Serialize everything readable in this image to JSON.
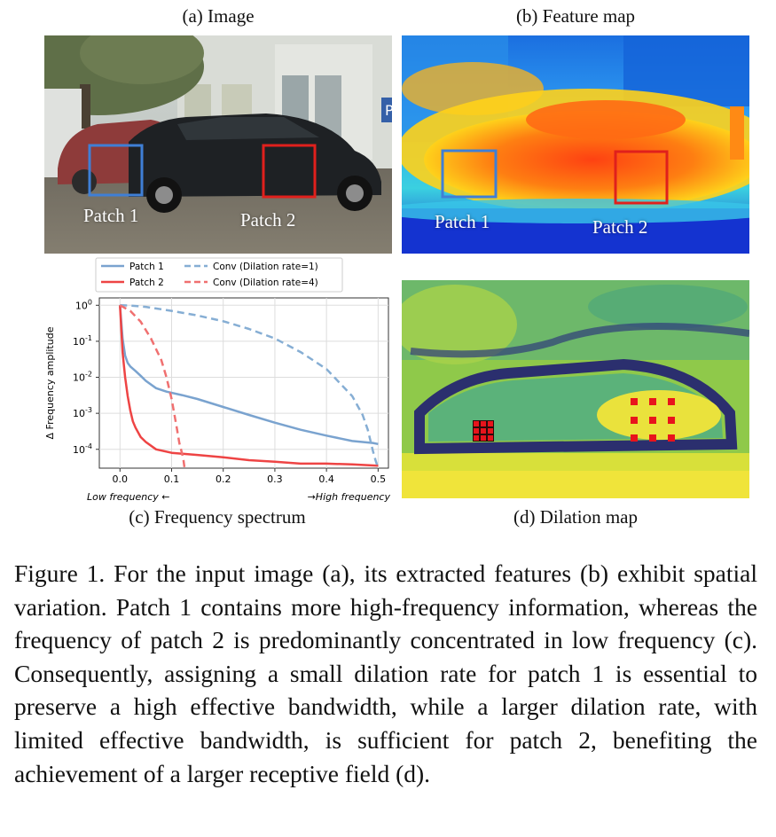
{
  "panels": {
    "a": {
      "title": "(a) Image",
      "patch1_label": "Patch 1",
      "patch2_label": "Patch 2"
    },
    "b": {
      "title": "(b) Feature map",
      "patch1_label": "Patch 1",
      "patch2_label": "Patch 2"
    },
    "c": {
      "title": "(c) Frequency spectrum"
    },
    "d": {
      "title": "(d) Dilation map"
    }
  },
  "colors": {
    "patch1": "#3f7fd6",
    "patch2": "#e0201c",
    "series_patch1": "#7aa3cf",
    "series_patch2": "#ee4444",
    "conv_d1": "#86aed4",
    "conv_d4": "#f07070",
    "dilation_marker": "#e8141c"
  },
  "chart_data": {
    "type": "line",
    "title": "",
    "xlabel": "",
    "ylabel": "Δ Frequency amplitude",
    "x_low_label": "Low frequency ←",
    "x_high_label": "→High frequency",
    "xlim": [
      -0.04,
      0.52
    ],
    "ylim": [
      3e-05,
      1.6
    ],
    "yscale": "log",
    "grid": true,
    "legend_position": "top",
    "x_ticks": [
      0.0,
      0.1,
      0.2,
      0.3,
      0.4,
      0.5
    ],
    "x_tick_labels": [
      "0.0",
      "0.1",
      "0.2",
      "0.3",
      "0.4",
      "0.5"
    ],
    "y_ticks": [
      1,
      0.1,
      0.01,
      0.001,
      0.0001
    ],
    "y_tick_base": "10",
    "y_tick_exponents": [
      "0",
      "-1",
      "-2",
      "-3",
      "-4"
    ],
    "series": [
      {
        "name": "Patch 1",
        "style": "solid",
        "x": [
          0.0,
          0.005,
          0.01,
          0.015,
          0.02,
          0.03,
          0.04,
          0.05,
          0.07,
          0.09,
          0.12,
          0.15,
          0.2,
          0.25,
          0.3,
          0.35,
          0.4,
          0.45,
          0.49,
          0.5
        ],
        "y": [
          1.0,
          0.12,
          0.04,
          0.025,
          0.02,
          0.015,
          0.011,
          0.008,
          0.005,
          0.004,
          0.0032,
          0.0025,
          0.0015,
          0.0009,
          0.00055,
          0.00035,
          0.00024,
          0.00017,
          0.00015,
          0.00014
        ]
      },
      {
        "name": "Patch 2",
        "style": "solid",
        "x": [
          0.0,
          0.005,
          0.01,
          0.015,
          0.02,
          0.025,
          0.03,
          0.04,
          0.05,
          0.07,
          0.1,
          0.15,
          0.2,
          0.25,
          0.3,
          0.35,
          0.4,
          0.45,
          0.5
        ],
        "y": [
          1.0,
          0.05,
          0.01,
          0.003,
          0.0012,
          0.0006,
          0.0004,
          0.00022,
          0.00016,
          0.0001,
          8e-05,
          7e-05,
          6e-05,
          5e-05,
          4.5e-05,
          4e-05,
          4e-05,
          3.8e-05,
          3.5e-05
        ]
      },
      {
        "name": "Conv (Dilation rate=1)",
        "style": "dashed",
        "x": [
          0.0,
          0.02,
          0.05,
          0.1,
          0.15,
          0.2,
          0.25,
          0.3,
          0.35,
          0.4,
          0.45,
          0.47,
          0.48,
          0.49,
          0.495,
          0.5
        ],
        "y": [
          1.0,
          0.98,
          0.9,
          0.7,
          0.52,
          0.36,
          0.22,
          0.12,
          0.05,
          0.017,
          0.003,
          0.0009,
          0.00035,
          9e-05,
          5e-05,
          3e-05
        ]
      },
      {
        "name": "Conv (Dilation rate=4)",
        "style": "dashed",
        "x": [
          0.0,
          0.02,
          0.04,
          0.06,
          0.08,
          0.09,
          0.1,
          0.11,
          0.115,
          0.12,
          0.123,
          0.125
        ],
        "y": [
          1.0,
          0.7,
          0.35,
          0.12,
          0.03,
          0.01,
          0.0025,
          0.0004,
          0.00015,
          8e-05,
          5e-05,
          3e-05
        ]
      }
    ]
  },
  "caption": {
    "text": "Figure 1. For the input image (a), its extracted features (b) exhibit spatial variation. Patch 1 contains more high-frequency information, whereas the frequency of patch 2 is predominantly concentrated in low frequency (c). Consequently, assigning a small dilation rate for patch 1 is essential to preserve a high effective bandwidth, while a larger dilation rate, with limited effective bandwidth, is sufficient for patch 2, benefiting the achievement of a larger receptive field (d)."
  }
}
